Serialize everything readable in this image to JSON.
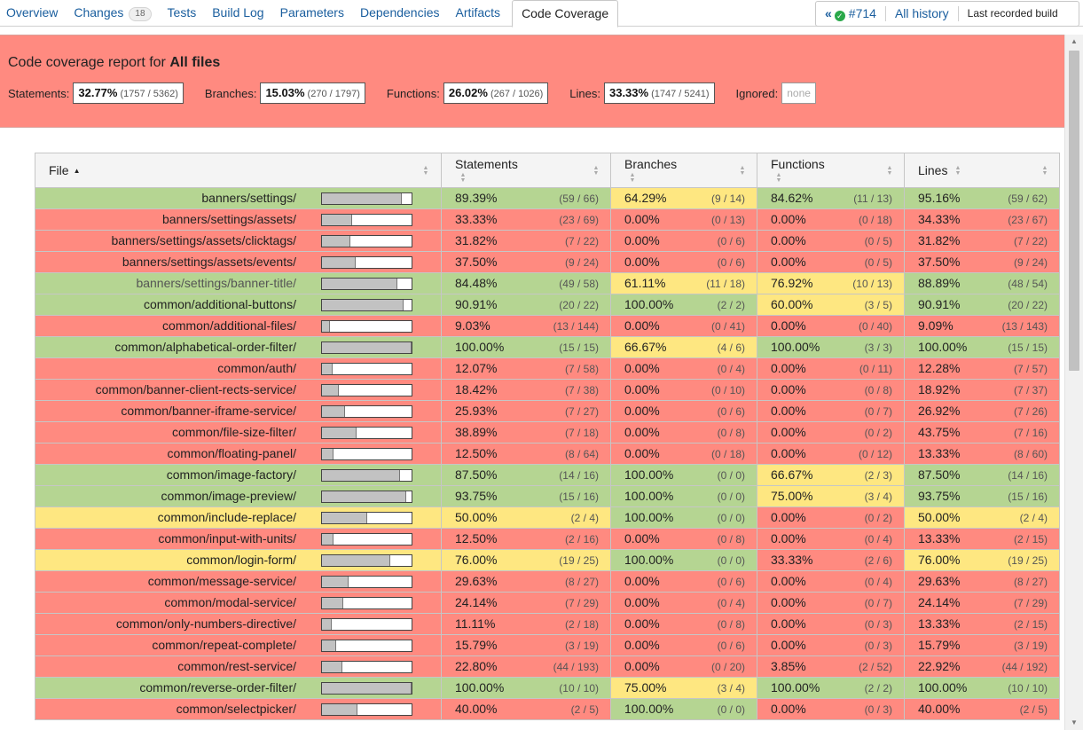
{
  "tabs": [
    {
      "label": "Overview"
    },
    {
      "label": "Changes",
      "badge": "18"
    },
    {
      "label": "Tests"
    },
    {
      "label": "Build Log"
    },
    {
      "label": "Parameters"
    },
    {
      "label": "Dependencies"
    },
    {
      "label": "Artifacts"
    },
    {
      "label": "Code Coverage",
      "active": true
    }
  ],
  "history": {
    "build": "#714",
    "all_history": "All history",
    "last_recorded": "Last recorded build"
  },
  "summary": {
    "title_prefix": "Code coverage report for",
    "title_target": "All files",
    "metrics": [
      {
        "label": "Statements:",
        "pct": "32.77%",
        "count": "(1757 / 5362)"
      },
      {
        "label": "Branches:",
        "pct": "15.03%",
        "count": "(270 / 1797)"
      },
      {
        "label": "Functions:",
        "pct": "26.02%",
        "count": "(267 / 1026)"
      },
      {
        "label": "Lines:",
        "pct": "33.33%",
        "count": "(1747 / 5241)"
      }
    ],
    "ignored_label": "Ignored:",
    "ignored_value": "none"
  },
  "table": {
    "headers": {
      "file": "File",
      "statements": "Statements",
      "branches": "Branches",
      "functions": "Functions",
      "lines": "Lines"
    },
    "rows": [
      {
        "file": "banners/settings/",
        "level": "green",
        "bar": 0.894,
        "s": [
          "89.39%",
          "(59 / 66)"
        ],
        "b": [
          "64.29%",
          "(9 / 14)"
        ],
        "f": [
          "84.62%",
          "(11 / 13)"
        ],
        "l": [
          "95.16%",
          "(59 / 62)"
        ]
      },
      {
        "file": "banners/settings/assets/",
        "level": "red",
        "bar": 0.333,
        "s": [
          "33.33%",
          "(23 / 69)"
        ],
        "b": [
          "0.00%",
          "(0 / 13)"
        ],
        "f": [
          "0.00%",
          "(0 / 18)"
        ],
        "l": [
          "34.33%",
          "(23 / 67)"
        ]
      },
      {
        "file": "banners/settings/assets/clicktags/",
        "level": "red",
        "bar": 0.318,
        "s": [
          "31.82%",
          "(7 / 22)"
        ],
        "b": [
          "0.00%",
          "(0 / 6)"
        ],
        "f": [
          "0.00%",
          "(0 / 5)"
        ],
        "l": [
          "31.82%",
          "(7 / 22)"
        ]
      },
      {
        "file": "banners/settings/assets/events/",
        "level": "red",
        "bar": 0.375,
        "s": [
          "37.50%",
          "(9 / 24)"
        ],
        "b": [
          "0.00%",
          "(0 / 6)"
        ],
        "f": [
          "0.00%",
          "(0 / 5)"
        ],
        "l": [
          "37.50%",
          "(9 / 24)"
        ]
      },
      {
        "file": "banners/settings/banner-title/",
        "level": "green",
        "bar": 0.845,
        "s": [
          "84.48%",
          "(49 / 58)"
        ],
        "b": [
          "61.11%",
          "(11 / 18)"
        ],
        "f": [
          "76.92%",
          "(10 / 13)"
        ],
        "l": [
          "88.89%",
          "(48 / 54)"
        ]
      },
      {
        "file": "common/additional-buttons/",
        "level": "green",
        "bar": 0.909,
        "s": [
          "90.91%",
          "(20 / 22)"
        ],
        "b": [
          "100.00%",
          "(2 / 2)"
        ],
        "f": [
          "60.00%",
          "(3 / 5)"
        ],
        "l": [
          "90.91%",
          "(20 / 22)"
        ]
      },
      {
        "file": "common/additional-files/",
        "level": "red",
        "bar": 0.09,
        "s": [
          "9.03%",
          "(13 / 144)"
        ],
        "b": [
          "0.00%",
          "(0 / 41)"
        ],
        "f": [
          "0.00%",
          "(0 / 40)"
        ],
        "l": [
          "9.09%",
          "(13 / 143)"
        ]
      },
      {
        "file": "common/alphabetical-order-filter/",
        "level": "green",
        "bar": 1.0,
        "s": [
          "100.00%",
          "(15 / 15)"
        ],
        "b": [
          "66.67%",
          "(4 / 6)"
        ],
        "f": [
          "100.00%",
          "(3 / 3)"
        ],
        "l": [
          "100.00%",
          "(15 / 15)"
        ]
      },
      {
        "file": "common/auth/",
        "level": "red",
        "bar": 0.121,
        "s": [
          "12.07%",
          "(7 / 58)"
        ],
        "b": [
          "0.00%",
          "(0 / 4)"
        ],
        "f": [
          "0.00%",
          "(0 / 11)"
        ],
        "l": [
          "12.28%",
          "(7 / 57)"
        ]
      },
      {
        "file": "common/banner-client-rects-service/",
        "level": "red",
        "bar": 0.184,
        "s": [
          "18.42%",
          "(7 / 38)"
        ],
        "b": [
          "0.00%",
          "(0 / 10)"
        ],
        "f": [
          "0.00%",
          "(0 / 8)"
        ],
        "l": [
          "18.92%",
          "(7 / 37)"
        ]
      },
      {
        "file": "common/banner-iframe-service/",
        "level": "red",
        "bar": 0.259,
        "s": [
          "25.93%",
          "(7 / 27)"
        ],
        "b": [
          "0.00%",
          "(0 / 6)"
        ],
        "f": [
          "0.00%",
          "(0 / 7)"
        ],
        "l": [
          "26.92%",
          "(7 / 26)"
        ]
      },
      {
        "file": "common/file-size-filter/",
        "level": "red",
        "bar": 0.389,
        "s": [
          "38.89%",
          "(7 / 18)"
        ],
        "b": [
          "0.00%",
          "(0 / 8)"
        ],
        "f": [
          "0.00%",
          "(0 / 2)"
        ],
        "l": [
          "43.75%",
          "(7 / 16)"
        ]
      },
      {
        "file": "common/floating-panel/",
        "level": "red",
        "bar": 0.125,
        "s": [
          "12.50%",
          "(8 / 64)"
        ],
        "b": [
          "0.00%",
          "(0 / 18)"
        ],
        "f": [
          "0.00%",
          "(0 / 12)"
        ],
        "l": [
          "13.33%",
          "(8 / 60)"
        ]
      },
      {
        "file": "common/image-factory/",
        "level": "green",
        "bar": 0.875,
        "s": [
          "87.50%",
          "(14 / 16)"
        ],
        "b": [
          "100.00%",
          "(0 / 0)"
        ],
        "f": [
          "66.67%",
          "(2 / 3)"
        ],
        "l": [
          "87.50%",
          "(14 / 16)"
        ]
      },
      {
        "file": "common/image-preview/",
        "level": "green",
        "bar": 0.938,
        "s": [
          "93.75%",
          "(15 / 16)"
        ],
        "b": [
          "100.00%",
          "(0 / 0)"
        ],
        "f": [
          "75.00%",
          "(3 / 4)"
        ],
        "l": [
          "93.75%",
          "(15 / 16)"
        ]
      },
      {
        "file": "common/include-replace/",
        "level": "yellow",
        "bar": 0.5,
        "s": [
          "50.00%",
          "(2 / 4)"
        ],
        "b": [
          "100.00%",
          "(0 / 0)"
        ],
        "f": [
          "0.00%",
          "(0 / 2)"
        ],
        "l": [
          "50.00%",
          "(2 / 4)"
        ]
      },
      {
        "file": "common/input-with-units/",
        "level": "red",
        "bar": 0.125,
        "s": [
          "12.50%",
          "(2 / 16)"
        ],
        "b": [
          "0.00%",
          "(0 / 8)"
        ],
        "f": [
          "0.00%",
          "(0 / 4)"
        ],
        "l": [
          "13.33%",
          "(2 / 15)"
        ]
      },
      {
        "file": "common/login-form/",
        "level": "yellow",
        "bar": 0.76,
        "s": [
          "76.00%",
          "(19 / 25)"
        ],
        "b": [
          "100.00%",
          "(0 / 0)"
        ],
        "f": [
          "33.33%",
          "(2 / 6)"
        ],
        "l": [
          "76.00%",
          "(19 / 25)"
        ]
      },
      {
        "file": "common/message-service/",
        "level": "red",
        "bar": 0.296,
        "s": [
          "29.63%",
          "(8 / 27)"
        ],
        "b": [
          "0.00%",
          "(0 / 6)"
        ],
        "f": [
          "0.00%",
          "(0 / 4)"
        ],
        "l": [
          "29.63%",
          "(8 / 27)"
        ]
      },
      {
        "file": "common/modal-service/",
        "level": "red",
        "bar": 0.241,
        "s": [
          "24.14%",
          "(7 / 29)"
        ],
        "b": [
          "0.00%",
          "(0 / 4)"
        ],
        "f": [
          "0.00%",
          "(0 / 7)"
        ],
        "l": [
          "24.14%",
          "(7 / 29)"
        ]
      },
      {
        "file": "common/only-numbers-directive/",
        "level": "red",
        "bar": 0.111,
        "s": [
          "11.11%",
          "(2 / 18)"
        ],
        "b": [
          "0.00%",
          "(0 / 8)"
        ],
        "f": [
          "0.00%",
          "(0 / 3)"
        ],
        "l": [
          "13.33%",
          "(2 / 15)"
        ]
      },
      {
        "file": "common/repeat-complete/",
        "level": "red",
        "bar": 0.158,
        "s": [
          "15.79%",
          "(3 / 19)"
        ],
        "b": [
          "0.00%",
          "(0 / 6)"
        ],
        "f": [
          "0.00%",
          "(0 / 3)"
        ],
        "l": [
          "15.79%",
          "(3 / 19)"
        ]
      },
      {
        "file": "common/rest-service/",
        "level": "red",
        "bar": 0.228,
        "s": [
          "22.80%",
          "(44 / 193)"
        ],
        "b": [
          "0.00%",
          "(0 / 20)"
        ],
        "f": [
          "3.85%",
          "(2 / 52)"
        ],
        "l": [
          "22.92%",
          "(44 / 192)"
        ]
      },
      {
        "file": "common/reverse-order-filter/",
        "level": "green",
        "bar": 1.0,
        "s": [
          "100.00%",
          "(10 / 10)"
        ],
        "b": [
          "75.00%",
          "(3 / 4)"
        ],
        "f": [
          "100.00%",
          "(2 / 2)"
        ],
        "l": [
          "100.00%",
          "(10 / 10)"
        ]
      },
      {
        "file": "common/selectpicker/",
        "level": "red",
        "bar": 0.4,
        "s": [
          "40.00%",
          "(2 / 5)"
        ],
        "b": [
          "100.00%",
          "(0 / 0)"
        ],
        "f": [
          "0.00%",
          "(0 / 3)"
        ],
        "l": [
          "40.00%",
          "(2 / 5)"
        ]
      }
    ]
  }
}
